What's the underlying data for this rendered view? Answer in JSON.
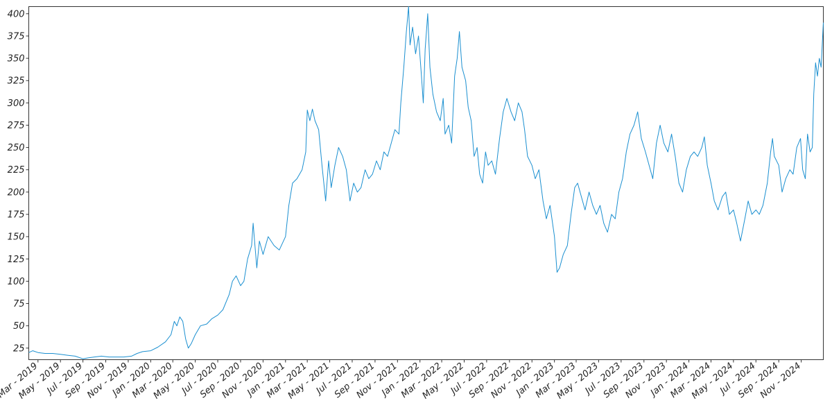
{
  "chart_data": {
    "type": "line",
    "title": "",
    "xlabel": "",
    "ylabel": "",
    "ylim": [
      12,
      408
    ],
    "yticks": [
      25,
      50,
      75,
      100,
      125,
      150,
      175,
      200,
      225,
      250,
      275,
      300,
      325,
      350,
      375,
      400
    ],
    "xlim": [
      "2019-02-04",
      "2024-12-31"
    ],
    "xticks": [
      {
        "date": "2019-03-01",
        "label": "Mar - 2019"
      },
      {
        "date": "2019-05-01",
        "label": "May - 2019"
      },
      {
        "date": "2019-07-01",
        "label": "Jul - 2019"
      },
      {
        "date": "2019-09-01",
        "label": "Sep - 2019"
      },
      {
        "date": "2019-11-01",
        "label": "Nov - 2019"
      },
      {
        "date": "2020-01-01",
        "label": "Jan - 2020"
      },
      {
        "date": "2020-03-01",
        "label": "Mar - 2020"
      },
      {
        "date": "2020-05-01",
        "label": "May - 2020"
      },
      {
        "date": "2020-07-01",
        "label": "Jul - 2020"
      },
      {
        "date": "2020-09-01",
        "label": "Sep - 2020"
      },
      {
        "date": "2020-11-01",
        "label": "Nov - 2020"
      },
      {
        "date": "2021-01-01",
        "label": "Jan - 2021"
      },
      {
        "date": "2021-03-01",
        "label": "Mar - 2021"
      },
      {
        "date": "2021-05-01",
        "label": "May - 2021"
      },
      {
        "date": "2021-07-01",
        "label": "Jul - 2021"
      },
      {
        "date": "2021-09-01",
        "label": "Sep - 2021"
      },
      {
        "date": "2021-11-01",
        "label": "Nov - 2021"
      },
      {
        "date": "2022-01-01",
        "label": "Jan - 2022"
      },
      {
        "date": "2022-03-01",
        "label": "Mar - 2022"
      },
      {
        "date": "2022-05-01",
        "label": "May - 2022"
      },
      {
        "date": "2022-07-01",
        "label": "Jul - 2022"
      },
      {
        "date": "2022-09-01",
        "label": "Sep - 2022"
      },
      {
        "date": "2022-11-01",
        "label": "Nov - 2022"
      },
      {
        "date": "2023-01-01",
        "label": "Jan - 2023"
      },
      {
        "date": "2023-03-01",
        "label": "Mar - 2023"
      },
      {
        "date": "2023-05-01",
        "label": "May - 2023"
      },
      {
        "date": "2023-07-01",
        "label": "Jul - 2023"
      },
      {
        "date": "2023-09-01",
        "label": "Sep - 2023"
      },
      {
        "date": "2023-11-01",
        "label": "Nov - 2023"
      },
      {
        "date": "2024-01-01",
        "label": "Jan - 2024"
      },
      {
        "date": "2024-03-01",
        "label": "Mar - 2024"
      },
      {
        "date": "2024-05-01",
        "label": "May - 2024"
      },
      {
        "date": "2024-07-01",
        "label": "Jul - 2024"
      },
      {
        "date": "2024-09-01",
        "label": "Sep - 2024"
      },
      {
        "date": "2024-11-01",
        "label": "Nov - 2024"
      }
    ],
    "grid": false,
    "legend": "none",
    "line_color": "#1a8fd0",
    "series": [
      {
        "name": "",
        "points": [
          [
            "2019-02-04",
            20
          ],
          [
            "2019-02-15",
            22
          ],
          [
            "2019-03-01",
            20
          ],
          [
            "2019-03-20",
            19
          ],
          [
            "2019-04-10",
            19
          ],
          [
            "2019-05-01",
            18
          ],
          [
            "2019-05-20",
            17
          ],
          [
            "2019-06-10",
            16
          ],
          [
            "2019-07-01",
            13
          ],
          [
            "2019-07-15",
            14
          ],
          [
            "2019-08-01",
            15
          ],
          [
            "2019-08-20",
            16
          ],
          [
            "2019-09-10",
            15
          ],
          [
            "2019-10-01",
            15
          ],
          [
            "2019-10-20",
            15
          ],
          [
            "2019-11-10",
            16
          ],
          [
            "2019-11-25",
            19
          ],
          [
            "2019-12-10",
            21
          ],
          [
            "2020-01-01",
            22
          ],
          [
            "2020-01-20",
            26
          ],
          [
            "2020-02-10",
            32
          ],
          [
            "2020-02-25",
            40
          ],
          [
            "2020-03-05",
            55
          ],
          [
            "2020-03-12",
            50
          ],
          [
            "2020-03-20",
            60
          ],
          [
            "2020-03-28",
            55
          ],
          [
            "2020-04-05",
            35
          ],
          [
            "2020-04-12",
            25
          ],
          [
            "2020-04-20",
            30
          ],
          [
            "2020-05-01",
            40
          ],
          [
            "2020-05-15",
            50
          ],
          [
            "2020-06-01",
            52
          ],
          [
            "2020-06-15",
            58
          ],
          [
            "2020-07-01",
            62
          ],
          [
            "2020-07-15",
            68
          ],
          [
            "2020-08-01",
            85
          ],
          [
            "2020-08-10",
            100
          ],
          [
            "2020-08-20",
            106
          ],
          [
            "2020-09-01",
            95
          ],
          [
            "2020-09-10",
            100
          ],
          [
            "2020-09-20",
            125
          ],
          [
            "2020-10-01",
            140
          ],
          [
            "2020-10-05",
            165
          ],
          [
            "2020-10-10",
            140
          ],
          [
            "2020-10-15",
            115
          ],
          [
            "2020-10-22",
            145
          ],
          [
            "2020-11-01",
            130
          ],
          [
            "2020-11-15",
            150
          ],
          [
            "2020-12-01",
            140
          ],
          [
            "2020-12-15",
            135
          ],
          [
            "2021-01-01",
            150
          ],
          [
            "2021-01-10",
            185
          ],
          [
            "2021-01-20",
            210
          ],
          [
            "2021-02-01",
            215
          ],
          [
            "2021-02-15",
            225
          ],
          [
            "2021-02-25",
            245
          ],
          [
            "2021-03-01",
            292
          ],
          [
            "2021-03-08",
            280
          ],
          [
            "2021-03-15",
            293
          ],
          [
            "2021-03-22",
            280
          ],
          [
            "2021-04-01",
            270
          ],
          [
            "2021-04-10",
            230
          ],
          [
            "2021-04-20",
            190
          ],
          [
            "2021-04-28",
            235
          ],
          [
            "2021-05-05",
            205
          ],
          [
            "2021-05-15",
            230
          ],
          [
            "2021-05-25",
            250
          ],
          [
            "2021-06-05",
            240
          ],
          [
            "2021-06-15",
            225
          ],
          [
            "2021-06-25",
            190
          ],
          [
            "2021-07-05",
            210
          ],
          [
            "2021-07-15",
            200
          ],
          [
            "2021-07-25",
            205
          ],
          [
            "2021-08-05",
            225
          ],
          [
            "2021-08-15",
            215
          ],
          [
            "2021-08-25",
            220
          ],
          [
            "2021-09-05",
            235
          ],
          [
            "2021-09-15",
            225
          ],
          [
            "2021-09-25",
            245
          ],
          [
            "2021-10-05",
            240
          ],
          [
            "2021-10-15",
            255
          ],
          [
            "2021-10-25",
            270
          ],
          [
            "2021-11-05",
            265
          ],
          [
            "2021-11-10",
            300
          ],
          [
            "2021-11-18",
            340
          ],
          [
            "2021-11-25",
            380
          ],
          [
            "2021-12-01",
            408
          ],
          [
            "2021-12-05",
            365
          ],
          [
            "2021-12-12",
            385
          ],
          [
            "2021-12-20",
            355
          ],
          [
            "2021-12-28",
            375
          ],
          [
            "2022-01-05",
            330
          ],
          [
            "2022-01-10",
            300
          ],
          [
            "2022-01-15",
            360
          ],
          [
            "2022-01-22",
            400
          ],
          [
            "2022-01-28",
            340
          ],
          [
            "2022-02-05",
            310
          ],
          [
            "2022-02-15",
            290
          ],
          [
            "2022-02-25",
            280
          ],
          [
            "2022-03-05",
            305
          ],
          [
            "2022-03-10",
            265
          ],
          [
            "2022-03-20",
            275
          ],
          [
            "2022-03-28",
            255
          ],
          [
            "2022-04-05",
            330
          ],
          [
            "2022-04-12",
            350
          ],
          [
            "2022-04-18",
            380
          ],
          [
            "2022-04-25",
            340
          ],
          [
            "2022-05-05",
            325
          ],
          [
            "2022-05-12",
            295
          ],
          [
            "2022-05-20",
            280
          ],
          [
            "2022-05-28",
            240
          ],
          [
            "2022-06-05",
            250
          ],
          [
            "2022-06-12",
            220
          ],
          [
            "2022-06-20",
            210
          ],
          [
            "2022-06-28",
            245
          ],
          [
            "2022-07-05",
            230
          ],
          [
            "2022-07-15",
            235
          ],
          [
            "2022-07-25",
            220
          ],
          [
            "2022-08-05",
            260
          ],
          [
            "2022-08-15",
            290
          ],
          [
            "2022-08-25",
            305
          ],
          [
            "2022-09-05",
            290
          ],
          [
            "2022-09-15",
            280
          ],
          [
            "2022-09-25",
            300
          ],
          [
            "2022-10-05",
            290
          ],
          [
            "2022-10-12",
            270
          ],
          [
            "2022-10-20",
            240
          ],
          [
            "2022-11-01",
            230
          ],
          [
            "2022-11-10",
            215
          ],
          [
            "2022-11-20",
            225
          ],
          [
            "2022-12-01",
            190
          ],
          [
            "2022-12-10",
            170
          ],
          [
            "2022-12-20",
            185
          ],
          [
            "2023-01-01",
            150
          ],
          [
            "2023-01-08",
            110
          ],
          [
            "2023-01-15",
            115
          ],
          [
            "2023-01-25",
            130
          ],
          [
            "2023-02-05",
            140
          ],
          [
            "2023-02-15",
            175
          ],
          [
            "2023-02-25",
            205
          ],
          [
            "2023-03-05",
            210
          ],
          [
            "2023-03-15",
            195
          ],
          [
            "2023-03-25",
            180
          ],
          [
            "2023-04-05",
            200
          ],
          [
            "2023-04-15",
            185
          ],
          [
            "2023-04-25",
            175
          ],
          [
            "2023-05-05",
            185
          ],
          [
            "2023-05-15",
            165
          ],
          [
            "2023-05-25",
            155
          ],
          [
            "2023-06-05",
            175
          ],
          [
            "2023-06-15",
            170
          ],
          [
            "2023-06-25",
            200
          ],
          [
            "2023-07-05",
            215
          ],
          [
            "2023-07-15",
            245
          ],
          [
            "2023-07-25",
            265
          ],
          [
            "2023-08-05",
            275
          ],
          [
            "2023-08-15",
            290
          ],
          [
            "2023-08-25",
            260
          ],
          [
            "2023-09-05",
            245
          ],
          [
            "2023-09-15",
            230
          ],
          [
            "2023-09-25",
            215
          ],
          [
            "2023-10-05",
            255
          ],
          [
            "2023-10-15",
            275
          ],
          [
            "2023-10-25",
            255
          ],
          [
            "2023-11-05",
            245
          ],
          [
            "2023-11-15",
            265
          ],
          [
            "2023-11-25",
            240
          ],
          [
            "2023-12-05",
            210
          ],
          [
            "2023-12-15",
            200
          ],
          [
            "2023-12-25",
            225
          ],
          [
            "2024-01-05",
            240
          ],
          [
            "2024-01-15",
            245
          ],
          [
            "2024-01-25",
            240
          ],
          [
            "2024-02-05",
            250
          ],
          [
            "2024-02-12",
            262
          ],
          [
            "2024-02-20",
            230
          ],
          [
            "2024-03-01",
            210
          ],
          [
            "2024-03-10",
            190
          ],
          [
            "2024-03-20",
            180
          ],
          [
            "2024-04-01",
            195
          ],
          [
            "2024-04-10",
            200
          ],
          [
            "2024-04-20",
            175
          ],
          [
            "2024-05-01",
            180
          ],
          [
            "2024-05-10",
            165
          ],
          [
            "2024-05-20",
            145
          ],
          [
            "2024-06-01",
            170
          ],
          [
            "2024-06-10",
            190
          ],
          [
            "2024-06-20",
            175
          ],
          [
            "2024-07-01",
            180
          ],
          [
            "2024-07-10",
            175
          ],
          [
            "2024-07-20",
            185
          ],
          [
            "2024-08-01",
            210
          ],
          [
            "2024-08-10",
            245
          ],
          [
            "2024-08-15",
            260
          ],
          [
            "2024-08-20",
            240
          ],
          [
            "2024-09-01",
            230
          ],
          [
            "2024-09-10",
            200
          ],
          [
            "2024-09-20",
            215
          ],
          [
            "2024-10-01",
            225
          ],
          [
            "2024-10-10",
            220
          ],
          [
            "2024-10-20",
            250
          ],
          [
            "2024-10-30",
            260
          ],
          [
            "2024-11-05",
            225
          ],
          [
            "2024-11-12",
            215
          ],
          [
            "2024-11-18",
            265
          ],
          [
            "2024-11-25",
            245
          ],
          [
            "2024-12-01",
            250
          ],
          [
            "2024-12-05",
            310
          ],
          [
            "2024-12-10",
            345
          ],
          [
            "2024-12-15",
            330
          ],
          [
            "2024-12-20",
            350
          ],
          [
            "2024-12-25",
            340
          ],
          [
            "2024-12-31",
            390
          ]
        ]
      }
    ]
  }
}
